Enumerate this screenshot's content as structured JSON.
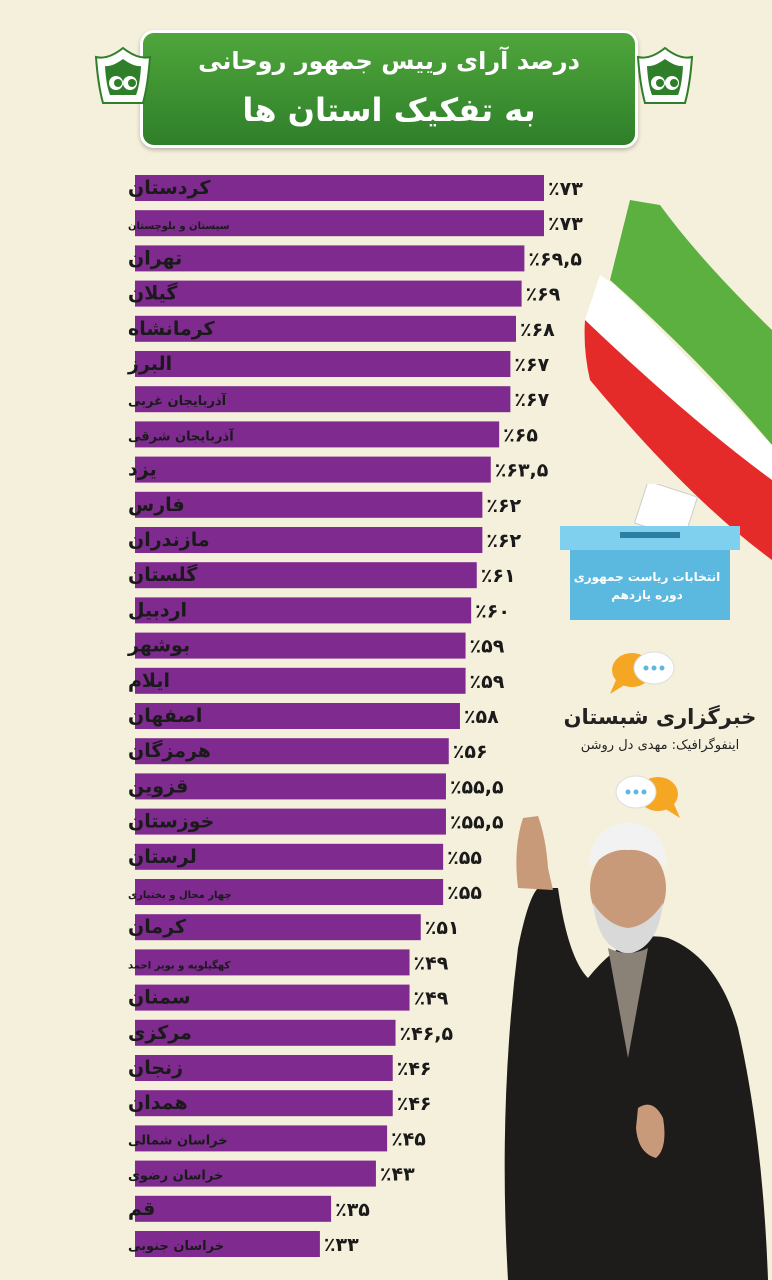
{
  "header": {
    "title_line1": "درصد آرای رییس جمهور روحانی",
    "title_line2": "به تفکیک استان ها"
  },
  "box": {
    "line1": "انتخابات ریاست جمهوری",
    "line2": "دوره یازدهم"
  },
  "agency": {
    "name": "خبرگزاری شبستان",
    "credit": "اینفوگرافیک: مهدی دل روشن"
  },
  "colors": {
    "bar": "#7e2a8e",
    "banner": "#3d942f",
    "background": "#f5f0dc",
    "flag_green": "#5cb040",
    "flag_red": "#e52a2a",
    "ballot_box": "#5bb9e0"
  },
  "icons": [
    "emblem-icon",
    "flag-ribbon-icon",
    "ballot-box-icon",
    "chat-bubbles-icon"
  ],
  "chart_data": {
    "type": "bar",
    "orientation": "horizontal",
    "categories": [
      "کردستان",
      "سیستان و بلوچستان",
      "تهران",
      "گیلان",
      "کرمانشاه",
      "البرز",
      "آذربایجان غربی",
      "آذربایجان شرقی",
      "یزد",
      "فارس",
      "مازندران",
      "گلستان",
      "اردبیل",
      "بوشهر",
      "ایلام",
      "اصفهان",
      "هرمزگان",
      "قزوین",
      "خوزستان",
      "لرستان",
      "چهار محال و بختیاری",
      "کرمان",
      "کهگیلویه و بویر احمد",
      "سمنان",
      "مرکزی",
      "زنجان",
      "همدان",
      "خراسان شمالی",
      "خراسان رضوی",
      "قم",
      "خراسان جنوبی"
    ],
    "values": [
      73,
      73,
      69.5,
      69,
      68,
      67,
      67,
      65,
      63.5,
      62,
      62,
      61,
      60,
      59,
      59,
      58,
      56,
      55.5,
      55.5,
      55,
      55,
      51,
      49,
      49,
      46.5,
      46,
      46,
      45,
      43,
      35,
      33
    ],
    "labels": [
      "٪۷۳",
      "٪۷۳",
      "٪۶۹,۵",
      "٪۶۹",
      "٪۶۸",
      "٪۶۷",
      "٪۶۷",
      "٪۶۵",
      "٪۶۳,۵",
      "٪۶۲",
      "٪۶۲",
      "٪۶۱",
      "٪۶۰",
      "٪۵۹",
      "٪۵۹",
      "٪۵۸",
      "٪۵۶",
      "٪۵۵,۵",
      "٪۵۵,۵",
      "٪۵۵",
      "٪۵۵",
      "٪۵۱",
      "٪۴۹",
      "٪۴۹",
      "٪۴۶,۵",
      "٪۴۶",
      "٪۴۶",
      "٪۴۵",
      "٪۴۳",
      "٪۳۵",
      "٪۳۳"
    ],
    "small_labels": [
      1,
      6,
      7,
      20,
      22,
      27,
      28,
      30
    ],
    "xlim": [
      0,
      73
    ],
    "grid": false,
    "legend": "none",
    "value_labels": "end"
  }
}
